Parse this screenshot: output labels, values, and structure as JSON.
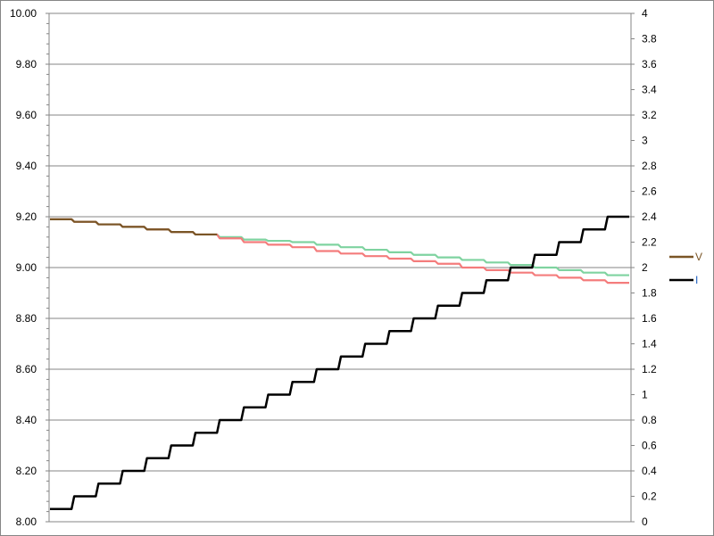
{
  "chart_data": {
    "type": "line",
    "title": "",
    "xlabel": "",
    "ylabel": "",
    "y_left": {
      "range": [
        8.0,
        10.0
      ],
      "ticks": [
        "8.00",
        "8.20",
        "8.40",
        "8.60",
        "8.80",
        "9.00",
        "9.20",
        "9.40",
        "9.60",
        "9.80",
        "10.00"
      ]
    },
    "y_right": {
      "range": [
        0,
        4
      ],
      "ticks": [
        "0",
        "0.2",
        "0.4",
        "0.6",
        "0.8",
        "1",
        "1.2",
        "1.4",
        "1.6",
        "1.8",
        "2",
        "2.2",
        "2.4",
        "2.6",
        "2.8",
        "3",
        "3.2",
        "3.4",
        "3.6",
        "3.8",
        "4"
      ]
    },
    "grid": true,
    "legend": {
      "placement": "right",
      "entries": [
        "V",
        "I"
      ]
    },
    "series": [
      {
        "name": "",
        "axis": "left",
        "color": "#7fd3a0",
        "values": [
          9.19,
          9.18,
          9.17,
          9.16,
          9.15,
          9.14,
          9.13,
          9.12,
          9.11,
          9.105,
          9.1,
          9.09,
          9.08,
          9.07,
          9.06,
          9.05,
          9.04,
          9.03,
          9.02,
          9.01,
          9.0,
          8.99,
          8.98,
          8.97
        ]
      },
      {
        "name": "",
        "axis": "left",
        "color": "#f47c7c",
        "values": [
          9.19,
          9.18,
          9.17,
          9.16,
          9.15,
          9.14,
          9.13,
          9.115,
          9.1,
          9.09,
          9.08,
          9.065,
          9.055,
          9.045,
          9.035,
          9.025,
          9.015,
          9.0,
          8.99,
          8.98,
          8.97,
          8.96,
          8.95,
          8.94
        ]
      },
      {
        "name": "V",
        "axis": "left",
        "color": "#7a5526",
        "values": [
          9.19,
          9.18,
          9.17,
          9.16,
          9.15,
          9.14,
          9.13,
          null,
          null,
          null,
          null,
          null,
          null,
          null,
          null,
          null,
          null,
          null,
          null,
          null,
          null,
          null,
          null,
          null
        ]
      },
      {
        "name": "I",
        "axis": "right",
        "color": "#000000",
        "values": [
          0.1,
          0.2,
          0.3,
          0.4,
          0.5,
          0.6,
          0.7,
          0.8,
          0.9,
          1.0,
          1.1,
          1.2,
          1.3,
          1.4,
          1.5,
          1.6,
          1.7,
          1.8,
          1.9,
          2.0,
          2.1,
          2.2,
          2.3,
          2.4
        ]
      }
    ]
  }
}
